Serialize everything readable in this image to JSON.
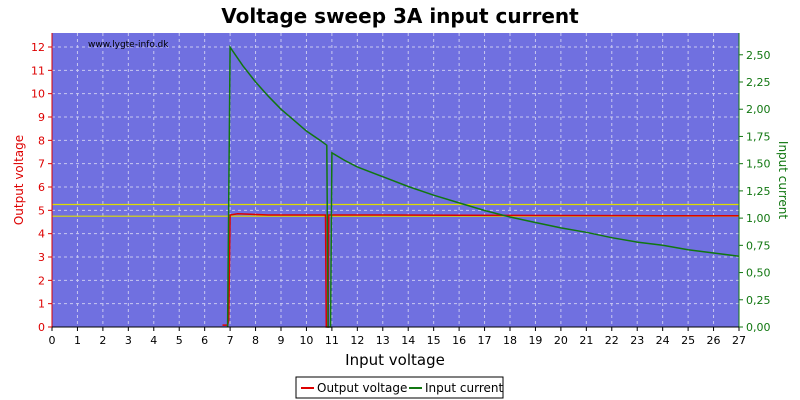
{
  "chart_data": {
    "type": "line",
    "title": "Voltage sweep 3A input current",
    "watermark": "www.lygte-info.dk",
    "xlabel": "Input voltage",
    "ylabel_left": "Output voltage",
    "ylabel_right": "Input current",
    "xlim": [
      0,
      27
    ],
    "ylim_left": [
      0,
      12.6
    ],
    "ylim_right": [
      0,
      2.7
    ],
    "x_ticks": [
      0,
      1,
      2,
      3,
      4,
      5,
      6,
      7,
      8,
      9,
      10,
      11,
      12,
      13,
      14,
      15,
      16,
      17,
      18,
      19,
      20,
      21,
      22,
      23,
      24,
      25,
      26,
      27
    ],
    "y_left_ticks": [
      0,
      1,
      2,
      3,
      4,
      5,
      6,
      7,
      8,
      9,
      10,
      11,
      12
    ],
    "y_right_ticks": [
      "0,00",
      "0,25",
      "0,50",
      "0,75",
      "1,00",
      "1,25",
      "1,50",
      "1,75",
      "2,00",
      "2,25",
      "2,50"
    ],
    "grid": true,
    "legend_position": "bottom-center",
    "limit_lines_left": [
      4.75,
      5.25
    ],
    "series": [
      {
        "name": "Output voltage",
        "axis": "left",
        "color": "#dd0000",
        "points": [
          [
            6.7,
            0.08
          ],
          [
            6.9,
            0.08
          ],
          [
            6.95,
            0.3
          ],
          [
            7.0,
            4.8
          ],
          [
            7.3,
            4.85
          ],
          [
            7.8,
            4.83
          ],
          [
            8.5,
            4.8
          ],
          [
            10.7,
            4.8
          ],
          [
            10.75,
            4.8
          ],
          [
            10.78,
            0.0
          ],
          [
            10.85,
            0.0
          ],
          [
            10.88,
            4.8
          ],
          [
            13,
            4.8
          ],
          [
            16,
            4.79
          ],
          [
            20,
            4.78
          ],
          [
            24,
            4.77
          ],
          [
            27,
            4.77
          ]
        ]
      },
      {
        "name": "Input current",
        "axis": "right",
        "color": "#117711",
        "points": [
          [
            6.9,
            0.0
          ],
          [
            7.0,
            2.57
          ],
          [
            7.5,
            2.4
          ],
          [
            8,
            2.25
          ],
          [
            8.5,
            2.12
          ],
          [
            9,
            2.0
          ],
          [
            9.5,
            1.9
          ],
          [
            10,
            1.8
          ],
          [
            10.5,
            1.72
          ],
          [
            10.8,
            1.67
          ],
          [
            10.85,
            0.0
          ],
          [
            10.95,
            0.0
          ],
          [
            11.0,
            1.6
          ],
          [
            11.5,
            1.53
          ],
          [
            12,
            1.47
          ],
          [
            13,
            1.38
          ],
          [
            14,
            1.29
          ],
          [
            15,
            1.21
          ],
          [
            16,
            1.14
          ],
          [
            17,
            1.07
          ],
          [
            18,
            1.01
          ],
          [
            19,
            0.96
          ],
          [
            20,
            0.91
          ],
          [
            21,
            0.87
          ],
          [
            22,
            0.82
          ],
          [
            23,
            0.78
          ],
          [
            24,
            0.75
          ],
          [
            25,
            0.71
          ],
          [
            26,
            0.68
          ],
          [
            27,
            0.65
          ]
        ]
      }
    ]
  },
  "colors": {
    "plot_background": "#7070e0",
    "limit_line": "#dddd00",
    "left_axis": "#dd0000",
    "right_axis": "#117711"
  }
}
